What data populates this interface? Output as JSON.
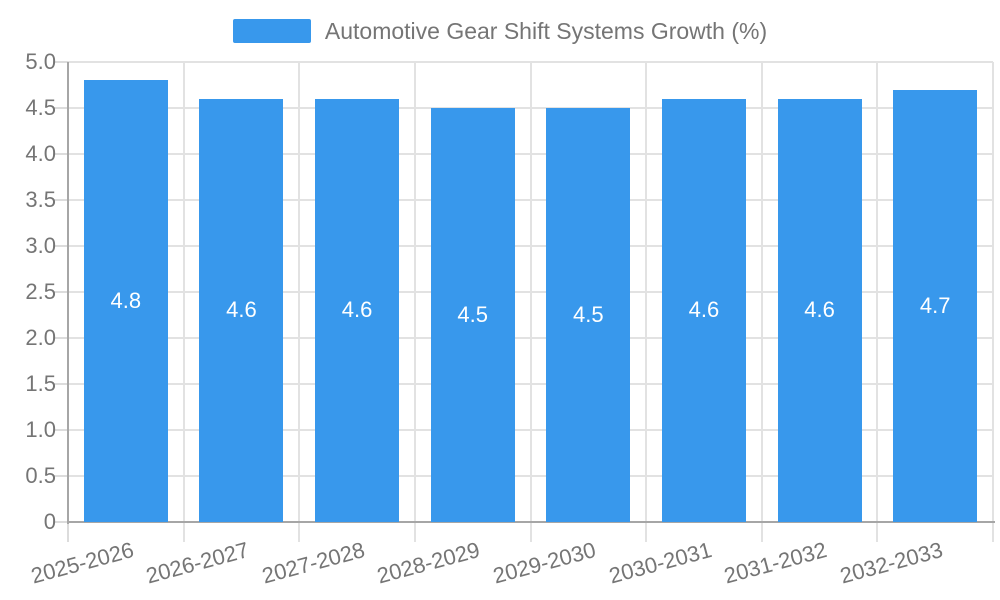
{
  "chart_data": {
    "type": "bar",
    "title": "Automotive Gear Shift Systems Growth (%)",
    "legend": {
      "label": "Automotive Gear Shift Systems Growth (%)",
      "position": "top"
    },
    "categories": [
      "2025-2026",
      "2026-2027",
      "2027-2028",
      "2028-2029",
      "2029-2030",
      "2030-2031",
      "2031-2032",
      "2032-2033"
    ],
    "values": [
      4.8,
      4.6,
      4.6,
      4.5,
      4.5,
      4.6,
      4.6,
      4.7
    ],
    "value_labels": [
      "4.8",
      "4.6",
      "4.6",
      "4.5",
      "4.5",
      "4.6",
      "4.6",
      "4.7"
    ],
    "xlabel": "",
    "ylabel": "",
    "ylim": [
      0,
      5.0
    ],
    "ytick_step": 0.5,
    "ytick_labels": [
      "5.0",
      "4.5",
      "4.0",
      "3.5",
      "3.0",
      "2.5",
      "2.0",
      "1.5",
      "1.0",
      "0.5",
      "0"
    ],
    "grid": true,
    "colors": {
      "bar": "#3898ec",
      "bar_value_text": "#ffffff",
      "axis_text": "#757575",
      "gridline": "#e2e2e2",
      "axis_line": "#a6a6a6",
      "background": "#ffffff"
    }
  }
}
